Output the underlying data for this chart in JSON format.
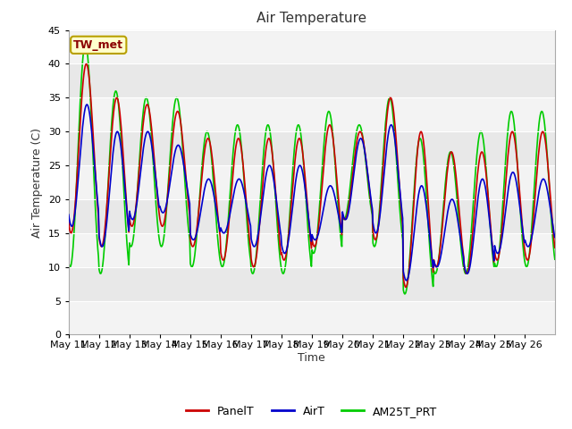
{
  "title": "Air Temperature",
  "xlabel": "Time",
  "ylabel": "Air Temperature (C)",
  "ylim": [
    0,
    45
  ],
  "yticks": [
    0,
    5,
    10,
    15,
    20,
    25,
    30,
    35,
    40,
    45
  ],
  "background_color": "#ffffff",
  "plot_bg_color": "#e8e8e8",
  "station_label": "TW_met",
  "station_label_color": "#8B0000",
  "station_label_bg": "#ffffcc",
  "station_label_border": "#b8a000",
  "line_colors": {
    "PanelT": "#cc0000",
    "AirT": "#0000cc",
    "AM25T_PRT": "#00cc00"
  },
  "line_width": 1.2,
  "xtick_labels": [
    "May 11",
    "May 12",
    "May 13",
    "May 14",
    "May 15",
    "May 16",
    "May 17",
    "May 18",
    "May 19",
    "May 20",
    "May 21",
    "May 22",
    "May 23",
    "May 24",
    "May 25",
    "May 26"
  ],
  "n_days": 16,
  "pts_per_day": 48,
  "panel_peaks": [
    40,
    35,
    34,
    33,
    29,
    29,
    29,
    29,
    31,
    30,
    35,
    30,
    27,
    27,
    30,
    30
  ],
  "panel_troughs": [
    15,
    13,
    16,
    16,
    13,
    11,
    10,
    11,
    13,
    17,
    14,
    7,
    10,
    9,
    11,
    11
  ],
  "air_peaks": [
    34,
    30,
    30,
    28,
    23,
    23,
    25,
    25,
    22,
    29,
    31,
    22,
    20,
    23,
    24,
    23
  ],
  "air_troughs": [
    16,
    13,
    17,
    18,
    14,
    15,
    13,
    12,
    14,
    17,
    15,
    8,
    10,
    9,
    12,
    13
  ],
  "am25_peaks": [
    43,
    36,
    35,
    35,
    30,
    31,
    31,
    31,
    33,
    31,
    35,
    29,
    27,
    30,
    33,
    33
  ],
  "am25_troughs": [
    10,
    9,
    13,
    13,
    10,
    10,
    9,
    9,
    12,
    17,
    13,
    6,
    9,
    9,
    10,
    10
  ],
  "panel_phase": 0.58,
  "air_phase": 0.6,
  "am25_phase": 0.55
}
